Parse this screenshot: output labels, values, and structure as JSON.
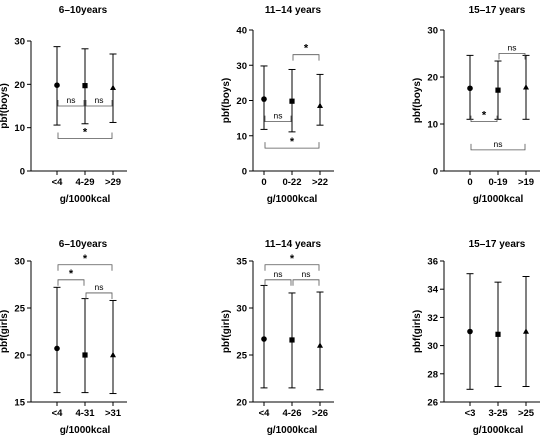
{
  "chart_data": [
    {
      "type": "scatter",
      "title": "6–10years",
      "xlabel": "g/1000kcal",
      "ylabel": "pbf(boys)",
      "categories": [
        "<4",
        "4-29",
        ">29"
      ],
      "ylim": [
        0,
        30
      ],
      "yticks": [
        0,
        10,
        20,
        30
      ],
      "series": [
        {
          "mean": [
            19.8,
            19.7,
            19.2
          ],
          "low": [
            10.6,
            10.9,
            11.2
          ],
          "high": [
            28.7,
            28.2,
            27.0
          ]
        }
      ],
      "markers": [
        "circle",
        "square",
        "triangle"
      ],
      "comparisons": [
        {
          "a": 0,
          "b": 1,
          "label": "ns",
          "dir": "down",
          "level": 15
        },
        {
          "a": 1,
          "b": 2,
          "label": "ns",
          "dir": "down",
          "level": 15
        },
        {
          "a": 0,
          "b": 2,
          "label": "*",
          "dir": "down",
          "level": 7.5
        }
      ]
    },
    {
      "type": "scatter",
      "title": "11–14 years",
      "xlabel": "g/1000kcal",
      "ylabel": "pbf(boys)",
      "categories": [
        "0",
        "0-22",
        ">22"
      ],
      "ylim": [
        0,
        40
      ],
      "yticks": [
        0,
        10,
        20,
        30,
        40
      ],
      "series": [
        {
          "mean": [
            20.4,
            19.8,
            18.5
          ],
          "low": [
            11.8,
            11.1,
            13.0
          ],
          "high": [
            29.8,
            28.8,
            27.4
          ]
        }
      ],
      "markers": [
        "circle",
        "square",
        "triangle"
      ],
      "comparisons": [
        {
          "a": 0,
          "b": 1,
          "label": "ns",
          "dir": "down",
          "level": 14
        },
        {
          "a": 1,
          "b": 2,
          "label": "*",
          "dir": "up",
          "level": 33
        },
        {
          "a": 0,
          "b": 2,
          "label": "*",
          "dir": "down",
          "level": 6.5
        }
      ]
    },
    {
      "type": "scatter",
      "title": "15–17 years",
      "xlabel": "g/1000kcal",
      "ylabel": "pbf(boys)",
      "categories": [
        "0",
        "0-19",
        ">19"
      ],
      "ylim": [
        0,
        30
      ],
      "yticks": [
        0,
        10,
        20,
        30
      ],
      "series": [
        {
          "mean": [
            17.6,
            17.2,
            17.8
          ],
          "low": [
            11.0,
            11.0,
            11.0
          ],
          "high": [
            24.6,
            23.4,
            24.6
          ]
        }
      ],
      "markers": [
        "circle",
        "square",
        "triangle"
      ],
      "comparisons": [
        {
          "a": 0,
          "b": 1,
          "label": "*",
          "dir": "down",
          "level": 10.5
        },
        {
          "a": 1,
          "b": 2,
          "label": "ns",
          "dir": "up",
          "level": 25
        },
        {
          "a": 0,
          "b": 2,
          "label": "ns",
          "dir": "down",
          "level": 4.5
        }
      ]
    },
    {
      "type": "scatter",
      "title": "6–10years",
      "xlabel": "g/1000kcal",
      "ylabel": "pbf(girls)",
      "categories": [
        "<4",
        "4-31",
        ">31"
      ],
      "ylim": [
        15,
        30
      ],
      "yticks": [
        15,
        20,
        25,
        30
      ],
      "series": [
        {
          "mean": [
            20.7,
            20.0,
            20.0
          ],
          "low": [
            16.0,
            16.0,
            15.9
          ],
          "high": [
            27.2,
            26.0,
            25.8
          ]
        }
      ],
      "markers": [
        "circle",
        "square",
        "triangle"
      ],
      "comparisons": [
        {
          "a": 0,
          "b": 1,
          "label": "*",
          "dir": "up",
          "level": 28.0
        },
        {
          "a": 1,
          "b": 2,
          "label": "ns",
          "dir": "up",
          "level": 26.6
        },
        {
          "a": 0,
          "b": 2,
          "label": "*",
          "dir": "up",
          "level": 29.6
        }
      ]
    },
    {
      "type": "scatter",
      "title": "11–14 years",
      "xlabel": "g/1000kcal",
      "ylabel": "pbf(girls)",
      "categories": [
        "<4",
        "4-26",
        ">26"
      ],
      "ylim": [
        20,
        35
      ],
      "yticks": [
        20,
        25,
        30,
        35
      ],
      "series": [
        {
          "mean": [
            26.7,
            26.6,
            26.0
          ],
          "low": [
            21.5,
            21.5,
            21.3
          ],
          "high": [
            32.4,
            31.6,
            31.7
          ]
        }
      ],
      "markers": [
        "circle",
        "square",
        "triangle"
      ],
      "comparisons": [
        {
          "a": 0,
          "b": 1,
          "label": "ns",
          "dir": "up",
          "level": 33.0
        },
        {
          "a": 1,
          "b": 2,
          "label": "ns",
          "dir": "up",
          "level": 33.0
        },
        {
          "a": 0,
          "b": 2,
          "label": "*",
          "dir": "up",
          "level": 34.6
        }
      ]
    },
    {
      "type": "scatter",
      "title": "15–17 years",
      "xlabel": "g/1000kcal",
      "ylabel": "pbf(girls)",
      "categories": [
        "<3",
        "3-25",
        ">25"
      ],
      "ylim": [
        26,
        36
      ],
      "yticks": [
        26,
        28,
        30,
        32,
        34,
        36
      ],
      "series": [
        {
          "mean": [
            31.0,
            30.8,
            31.0
          ],
          "low": [
            26.9,
            27.1,
            27.1
          ],
          "high": [
            35.1,
            34.5,
            34.9
          ]
        }
      ],
      "markers": [
        "circle",
        "square",
        "triangle"
      ],
      "comparisons": []
    }
  ]
}
